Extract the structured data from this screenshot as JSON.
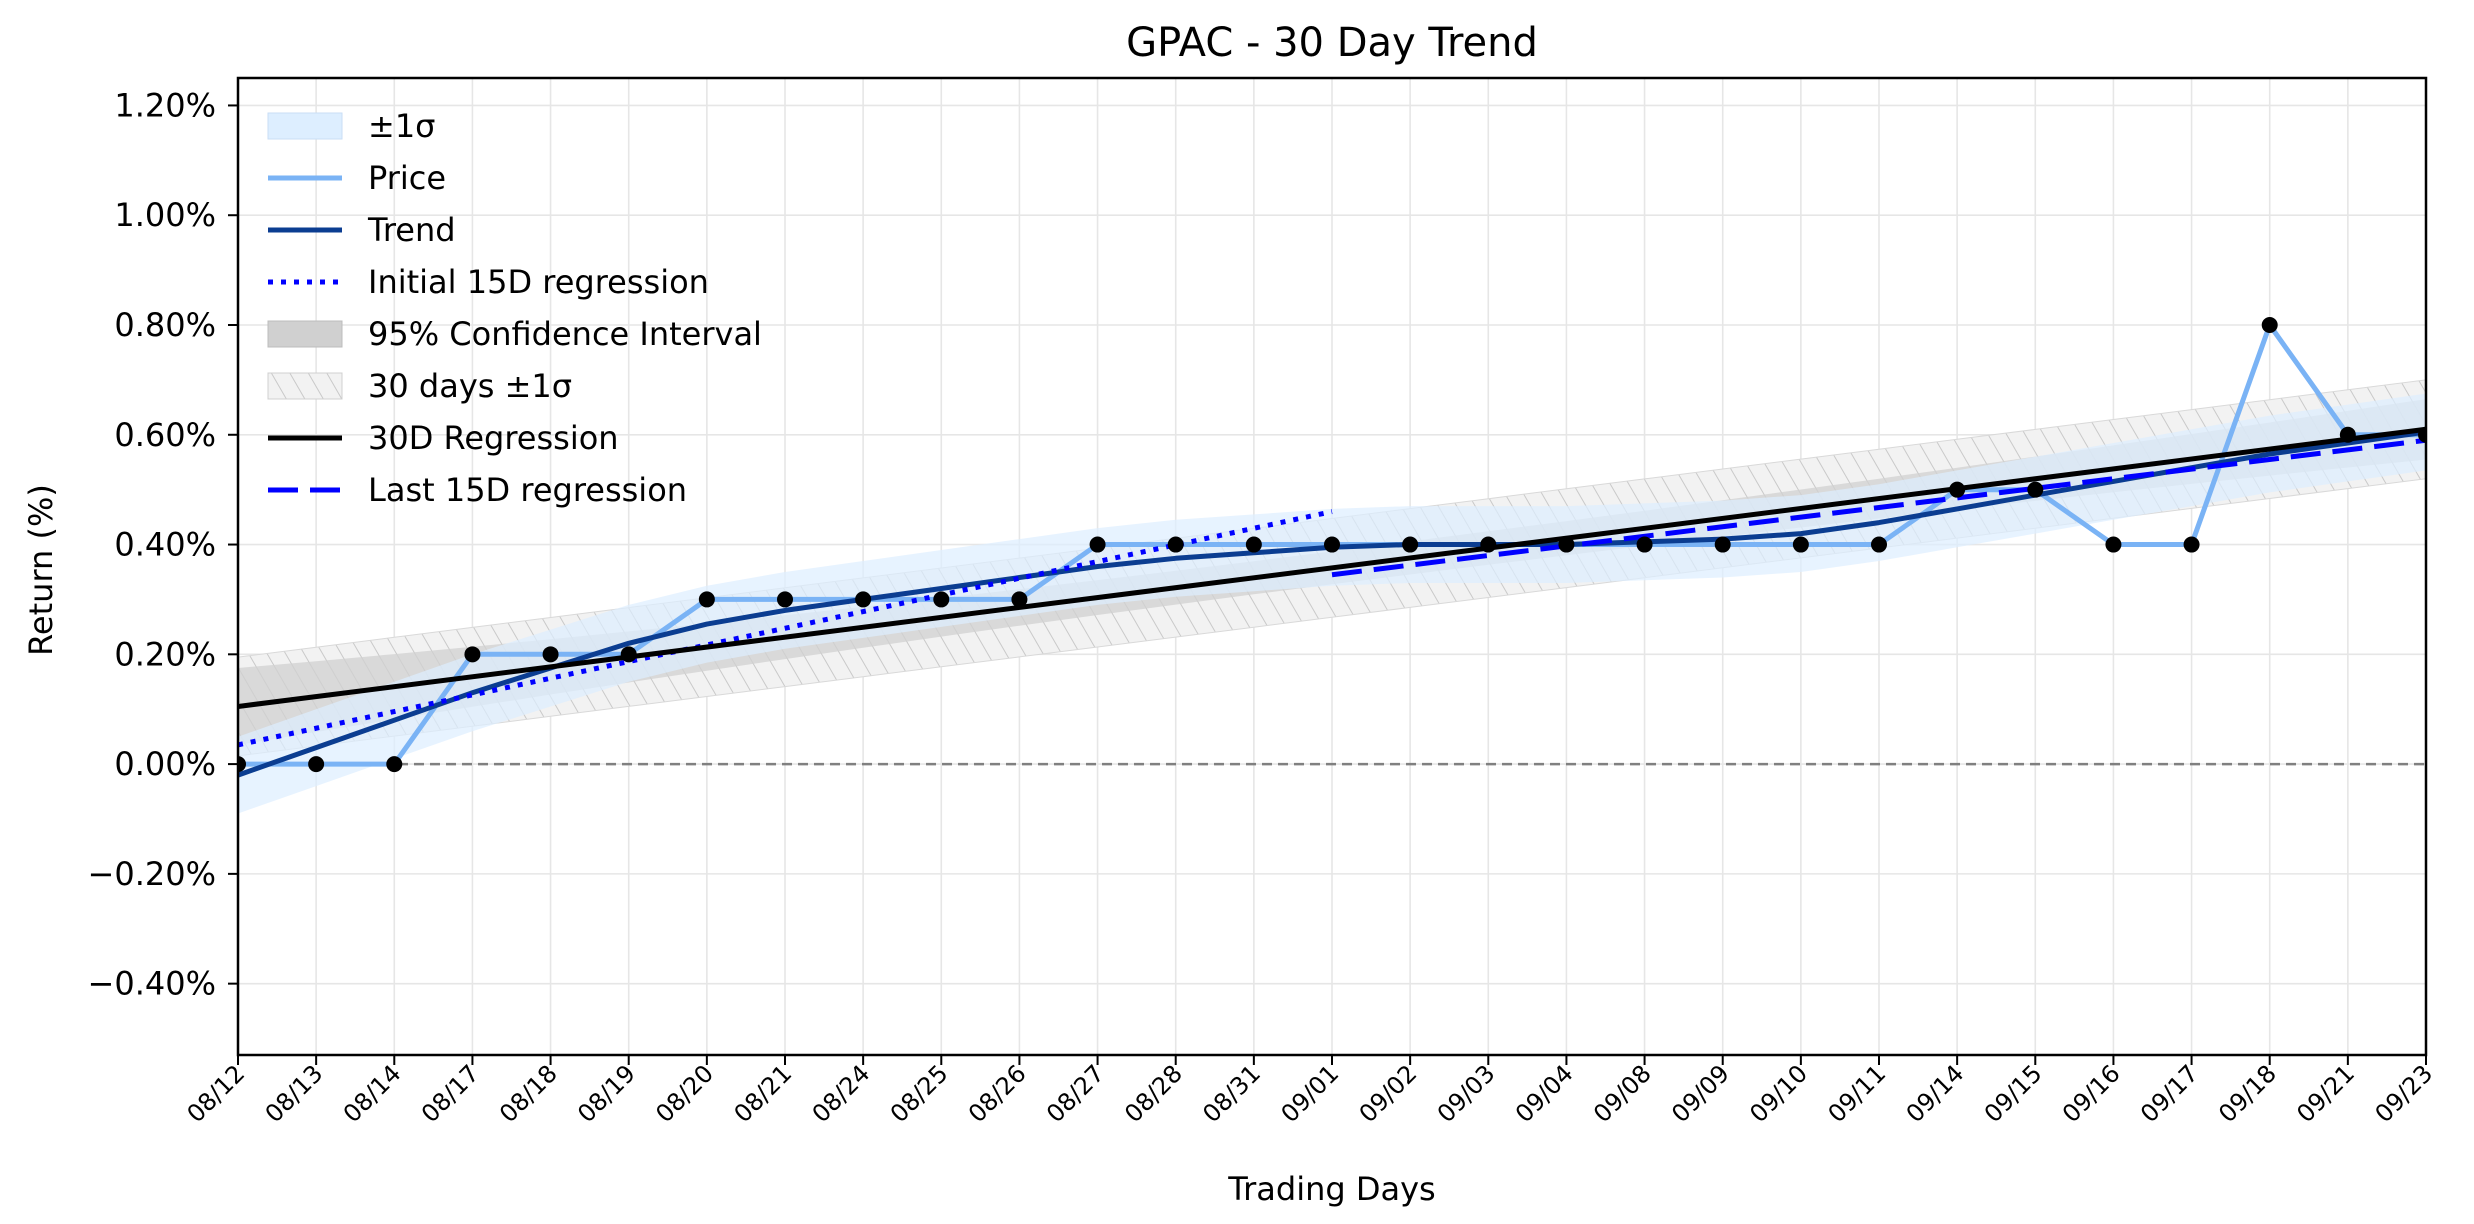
{
  "chart_data": {
    "type": "line",
    "title": "GPAC - 30 Day Trend",
    "xlabel": "Trading Days",
    "ylabel": "Return (%)",
    "categories": [
      "08/12",
      "08/13",
      "08/14",
      "08/17",
      "08/18",
      "08/19",
      "08/20",
      "08/21",
      "08/24",
      "08/25",
      "08/26",
      "08/27",
      "08/28",
      "08/31",
      "09/01",
      "09/02",
      "09/03",
      "09/04",
      "09/08",
      "09/09",
      "09/10",
      "09/11",
      "09/14",
      "09/15",
      "09/16",
      "09/17",
      "09/18",
      "09/21",
      "09/23"
    ],
    "ylim": [
      -0.53,
      1.25
    ],
    "yticks": [
      -0.4,
      -0.2,
      0.0,
      0.2,
      0.4,
      0.6,
      0.8,
      1.0,
      1.2
    ],
    "ytick_labels": [
      "−0.40%",
      "−0.20%",
      "0.00%",
      "0.20%",
      "0.40%",
      "0.60%",
      "0.80%",
      "1.00%",
      "1.20%"
    ],
    "grid": true,
    "legend_position": "top-left",
    "reference_line": {
      "y": 0.0,
      "style": "dashed",
      "color": "#808080"
    },
    "series": [
      {
        "name": "Price",
        "color": "#7ab3f5",
        "values": [
          0.0,
          0.0,
          0.0,
          0.2,
          0.2,
          0.2,
          0.3,
          0.3,
          0.3,
          0.3,
          0.3,
          0.4,
          0.4,
          0.4,
          0.4,
          0.4,
          0.4,
          0.4,
          0.4,
          0.4,
          0.4,
          0.4,
          0.5,
          0.5,
          0.4,
          0.4,
          0.8,
          0.6,
          0.6
        ]
      },
      {
        "name": "Trend",
        "color": "#0b3d91",
        "values": [
          -0.02,
          0.03,
          0.08,
          0.13,
          0.175,
          0.22,
          0.255,
          0.28,
          0.3,
          0.32,
          0.34,
          0.36,
          0.375,
          0.385,
          0.395,
          0.4,
          0.4,
          0.4,
          0.405,
          0.41,
          0.42,
          0.44,
          0.465,
          0.49,
          0.515,
          0.54,
          0.565,
          0.585,
          0.605
        ]
      },
      {
        "name": "Initial 15D regression",
        "color": "#0000ff",
        "style": "dotted",
        "x_range": [
          "08/12",
          "09/01"
        ],
        "start": 0.035,
        "end": 0.46
      },
      {
        "name": "30D Regression",
        "color": "#000000",
        "x_range": [
          "08/12",
          "09/23"
        ],
        "start": 0.105,
        "end": 0.61
      },
      {
        "name": "Last 15D regression",
        "color": "#0000ff",
        "style": "dashed",
        "x_range": [
          "09/01",
          "09/23"
        ],
        "start": 0.345,
        "end": 0.59
      },
      {
        "name": "±1σ",
        "type": "band",
        "color": "#ddeeff",
        "around": "Trend",
        "width": 0.07
      },
      {
        "name": "95% Confidence Interval",
        "type": "band",
        "color": "#d3d3d3",
        "around": "30D Regression",
        "start_width": 0.07,
        "mid_width": 0.03,
        "end_width": 0.055
      },
      {
        "name": "30 days ±1σ",
        "type": "band",
        "color": "#e8e8e8",
        "hatch": true,
        "around": "30D Regression",
        "width": 0.09
      }
    ],
    "legend": [
      "±1σ",
      "Price",
      "Trend",
      "Initial 15D regression",
      "95% Confidence Interval",
      "30 days ±1σ",
      "30D Regression",
      "Last 15D regression"
    ]
  }
}
